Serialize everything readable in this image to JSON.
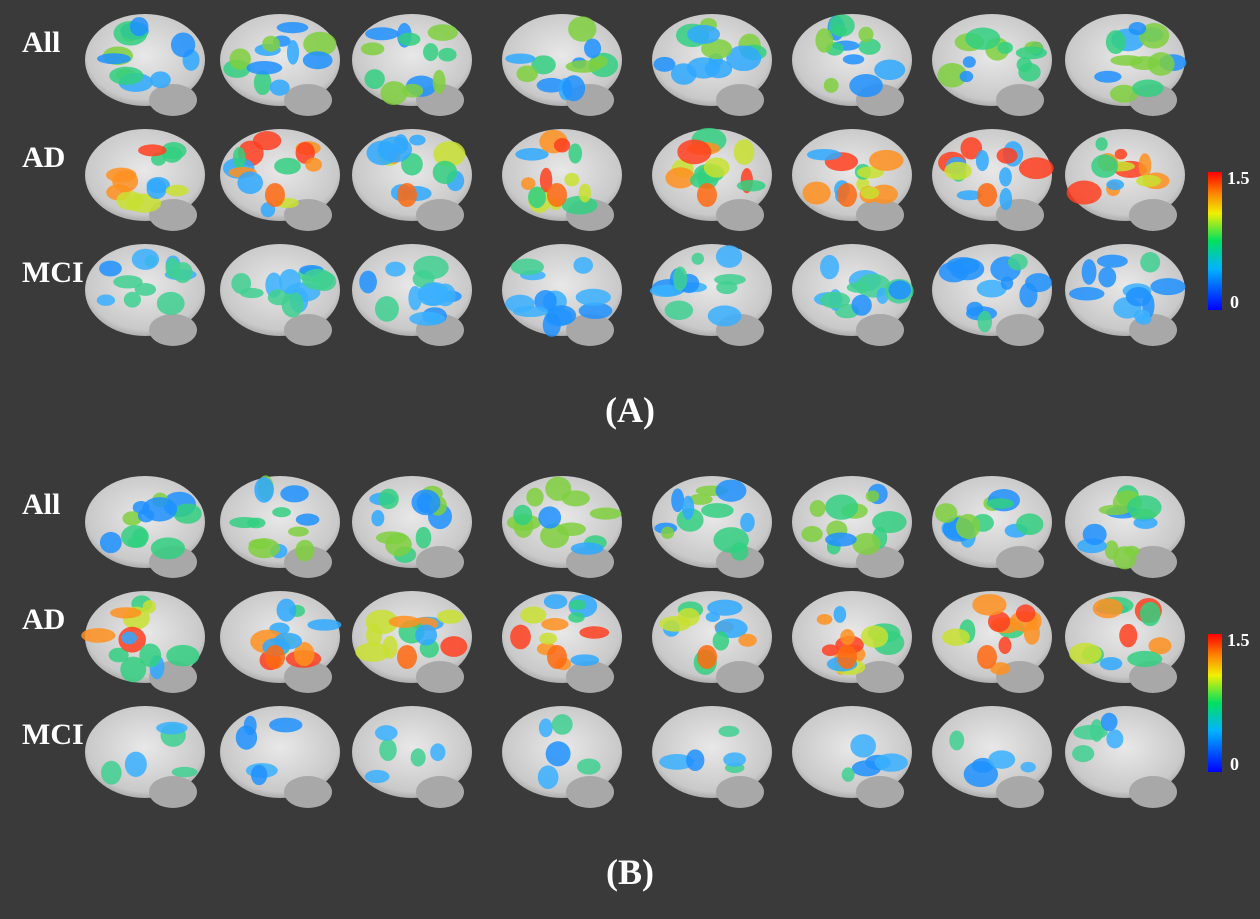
{
  "panels": [
    {
      "label": "(A)",
      "rows": [
        "All",
        "AD",
        "MCI"
      ],
      "colorbar": {
        "max": "1.5",
        "min": "0"
      }
    },
    {
      "label": "(B)",
      "rows": [
        "All",
        "AD",
        "MCI"
      ],
      "colorbar": {
        "max": "1.5",
        "min": "0"
      }
    }
  ]
}
